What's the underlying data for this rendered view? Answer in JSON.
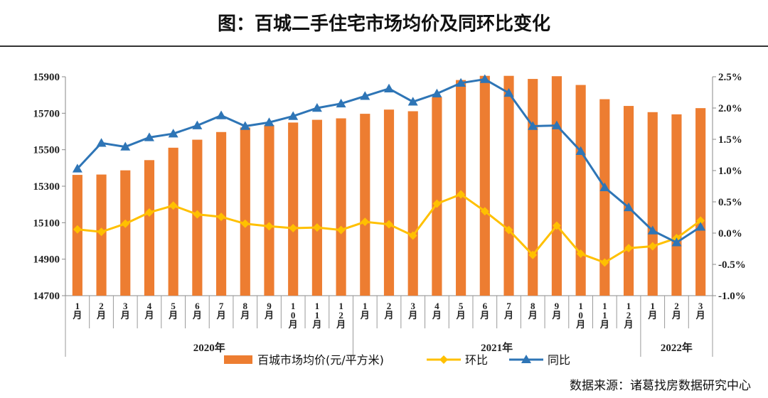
{
  "title": "图：百城二手住宅市场均价及同环比变化",
  "source": "数据来源：诸葛找房数据研究中心",
  "colors": {
    "bar": "#ED7D31",
    "mom": "#FFC000",
    "yoy": "#2E75B6"
  },
  "chart_data": {
    "type": "bar",
    "categories": [
      "1月",
      "2月",
      "3月",
      "4月",
      "5月",
      "6月",
      "7月",
      "8月",
      "9月",
      "10月",
      "11月",
      "12月",
      "1月",
      "2月",
      "3月",
      "4月",
      "5月",
      "6月",
      "7月",
      "8月",
      "9月",
      "10月",
      "11月",
      "12月",
      "1月",
      "2月",
      "3月"
    ],
    "year_groups": [
      {
        "label": "2020年",
        "count": 12
      },
      {
        "label": "2021年",
        "count": 12
      },
      {
        "label": "2022年",
        "count": 3
      }
    ],
    "series": [
      {
        "name": "百城市场均价(元/平方米)",
        "type": "bar",
        "axis": "left",
        "values": [
          15362,
          15364,
          15387,
          15443,
          15511,
          15555,
          15597,
          15622,
          15635,
          15649,
          15664,
          15672,
          15697,
          15720,
          15711,
          15788,
          15882,
          15905,
          15905,
          15888,
          15903,
          15855,
          15777,
          15740,
          15706,
          15694,
          15728
        ]
      },
      {
        "name": "环比",
        "type": "line",
        "marker": "diamond",
        "axis": "right",
        "values": [
          0.06,
          0.02,
          0.15,
          0.33,
          0.44,
          0.3,
          0.26,
          0.15,
          0.11,
          0.08,
          0.09,
          0.05,
          0.18,
          0.14,
          -0.04,
          0.47,
          0.62,
          0.35,
          0.05,
          -0.35,
          0.12,
          -0.33,
          -0.47,
          -0.24,
          -0.21,
          -0.08,
          0.2
        ]
      },
      {
        "name": "同比",
        "type": "line",
        "marker": "triangle",
        "axis": "right",
        "values": [
          1.03,
          1.44,
          1.38,
          1.53,
          1.59,
          1.72,
          1.88,
          1.71,
          1.77,
          1.87,
          2.0,
          2.07,
          2.19,
          2.31,
          2.1,
          2.23,
          2.4,
          2.46,
          2.24,
          1.71,
          1.72,
          1.31,
          0.73,
          0.41,
          0.04,
          -0.15,
          0.1
        ]
      }
    ],
    "y_left": {
      "min": 14700,
      "max": 15900,
      "ticks": [
        14700,
        14900,
        15100,
        15300,
        15500,
        15700,
        15900
      ]
    },
    "y_right": {
      "min": -1.0,
      "max": 2.5,
      "ticks": [
        -1.0,
        -0.5,
        0.0,
        0.5,
        1.0,
        1.5,
        2.0,
        2.5
      ],
      "tick_labels": [
        "-1.0%",
        "-0.5%",
        "0.0%",
        "0.5%",
        "1.0%",
        "1.5%",
        "2.0%",
        "2.5%"
      ]
    },
    "legend_position": "bottom",
    "grid": false
  }
}
